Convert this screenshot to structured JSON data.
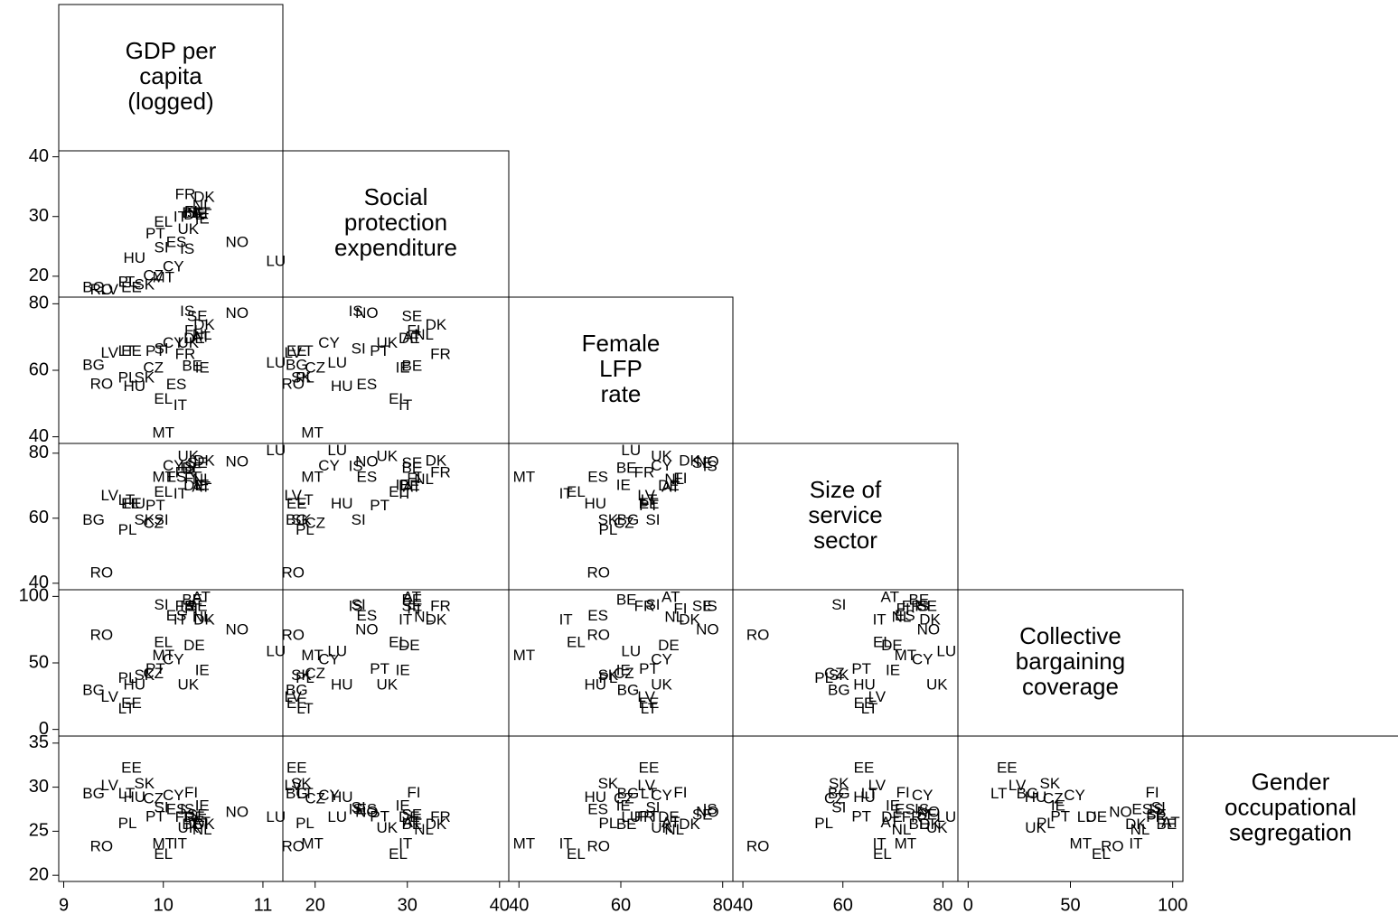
{
  "chart_data": {
    "type": "scatter",
    "categories": [
      "AT",
      "BE",
      "BG",
      "CY",
      "CZ",
      "DE",
      "DK",
      "EE",
      "EL",
      "ES",
      "FI",
      "FR",
      "HU",
      "IE",
      "IS",
      "IT",
      "LT",
      "LU",
      "LV",
      "MT",
      "NL",
      "NO",
      "PL",
      "PT",
      "RO",
      "SE",
      "SI",
      "SK",
      "UK"
    ],
    "variables": [
      {
        "name": [
          "GDP per",
          "capita",
          "(logged)"
        ],
        "lim": [
          8.95,
          11.2
        ],
        "ticks": [
          9,
          10,
          11
        ],
        "values": [
          10.38,
          10.29,
          9.3,
          10.1,
          9.9,
          10.31,
          10.41,
          9.68,
          10.0,
          10.13,
          10.28,
          10.22,
          9.71,
          10.39,
          10.24,
          10.17,
          9.63,
          11.13,
          9.46,
          10.0,
          10.39,
          10.74,
          9.64,
          9.92,
          9.38,
          10.34,
          9.98,
          9.81,
          10.25
        ]
      },
      {
        "name": [
          "Social",
          "protection",
          "expenditure"
        ],
        "lim": [
          16.5,
          41
        ],
        "ticks": [
          20,
          30,
          40
        ],
        "values": [
          30.5,
          30.5,
          18.0,
          21.5,
          20.0,
          30.2,
          33.1,
          18.0,
          29.0,
          25.6,
          30.7,
          33.6,
          22.9,
          29.5,
          24.4,
          29.8,
          18.9,
          22.4,
          17.6,
          19.7,
          31.8,
          25.6,
          18.9,
          27.0,
          17.6,
          30.5,
          24.7,
          18.5,
          27.8
        ]
      },
      {
        "name": [
          "Female",
          "LFP",
          "rate"
        ],
        "lim": [
          38,
          82
        ],
        "ticks": [
          40,
          60,
          80
        ],
        "values": [
          69.8,
          61.1,
          61.4,
          68,
          60.6,
          69.4,
          73.5,
          65.5,
          51.2,
          55.5,
          71.7,
          64.6,
          55,
          60.5,
          77.5,
          49.2,
          65.5,
          62,
          65,
          41,
          70.5,
          77,
          57.5,
          65.5,
          55.6,
          76,
          66.3,
          57.5,
          68
        ]
      },
      {
        "name": [
          "Size of",
          "service",
          "sector"
        ],
        "lim": [
          38,
          83
        ],
        "ticks": [
          40,
          60,
          80
        ],
        "values": [
          69.4,
          75.2,
          59.2,
          75.9,
          58.3,
          69.8,
          77.4,
          64.2,
          67.9,
          72.4,
          72,
          73.8,
          64.3,
          70,
          75.8,
          67.3,
          65.3,
          80.7,
          66.8,
          72.5,
          71.7,
          77.1,
          56.2,
          63.7,
          43,
          76.8,
          59.2,
          59.2,
          78.8
        ]
      },
      {
        "name": [
          "Collective",
          "bargaining",
          "coverage"
        ],
        "lim": [
          -5,
          105
        ],
        "ticks": [
          0,
          50,
          100
        ],
        "values": [
          99,
          97,
          29,
          52,
          41.5,
          62.7,
          82,
          19,
          65,
          85,
          90,
          92,
          33,
          44,
          92,
          82,
          15,
          58,
          24,
          55,
          84,
          74.5,
          38,
          45,
          70.5,
          92,
          93,
          40,
          33
        ]
      },
      {
        "name": [
          "Gender",
          "occupational",
          "segregation"
        ],
        "lim": [
          19.3,
          35.8
        ],
        "ticks": [
          20,
          25,
          30,
          35
        ],
        "values": [
          25.9,
          25.7,
          29.2,
          29,
          28.6,
          26.5,
          25.7,
          32.1,
          22.3,
          27.4,
          29.3,
          26.5,
          28.8,
          27.8,
          27.4,
          23.5,
          29.2,
          26.5,
          30.1,
          23.5,
          25.1,
          27.1,
          25.8,
          26.6,
          23.2,
          26.8,
          27.6,
          30.3,
          25.3
        ]
      }
    ]
  }
}
